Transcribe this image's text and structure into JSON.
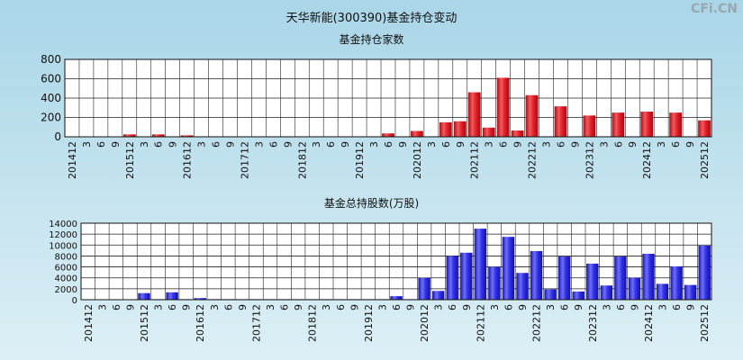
{
  "page": {
    "title": "天华新能(300390)基金持仓变动",
    "watermark": "CFi.CN"
  },
  "chart_data": [
    {
      "type": "bar",
      "title": "基金持仓家数",
      "ylim": [
        0,
        800
      ],
      "yticks": [
        0,
        200,
        400,
        600,
        800
      ],
      "grid": true,
      "color": "#e8212a",
      "categories": [
        "201412",
        "3",
        "6",
        "9",
        "201512",
        "3",
        "6",
        "9",
        "201612",
        "3",
        "6",
        "9",
        "201712",
        "3",
        "6",
        "9",
        "201812",
        "3",
        "6",
        "9",
        "201912",
        "3",
        "6",
        "9",
        "202012",
        "3",
        "6",
        "9",
        "202112",
        "3",
        "6",
        "9",
        "202212",
        "3",
        "6",
        "9",
        "202312",
        "3",
        "6",
        "9",
        "202412",
        "3",
        "6",
        "9",
        "202512"
      ],
      "values": [
        2,
        2,
        2,
        2,
        25,
        5,
        25,
        5,
        15,
        5,
        5,
        5,
        5,
        5,
        5,
        5,
        5,
        5,
        5,
        5,
        5,
        5,
        35,
        5,
        60,
        5,
        150,
        160,
        460,
        95,
        610,
        65,
        430,
        5,
        315,
        5,
        220,
        5,
        250,
        5,
        260,
        5,
        250,
        5,
        170
      ]
    },
    {
      "type": "bar",
      "title": "基金总持股数(万股)",
      "ylim": [
        0,
        14000
      ],
      "yticks": [
        0,
        2000,
        4000,
        6000,
        8000,
        10000,
        12000,
        14000
      ],
      "grid": true,
      "color": "#2b2bf0",
      "categories": [
        "201412",
        "3",
        "6",
        "9",
        "201512",
        "3",
        "6",
        "9",
        "201612",
        "3",
        "6",
        "9",
        "201712",
        "3",
        "6",
        "9",
        "201812",
        "3",
        "6",
        "9",
        "201912",
        "3",
        "6",
        "9",
        "202012",
        "3",
        "6",
        "9",
        "202112",
        "3",
        "6",
        "9",
        "202212",
        "3",
        "6",
        "9",
        "202312",
        "3",
        "6",
        "9",
        "202412",
        "3",
        "6",
        "9",
        "202512"
      ],
      "values": [
        50,
        50,
        50,
        50,
        1200,
        100,
        1350,
        100,
        300,
        100,
        100,
        100,
        100,
        100,
        100,
        100,
        100,
        100,
        100,
        100,
        100,
        100,
        650,
        100,
        4000,
        1600,
        8000,
        8600,
        13000,
        6000,
        11500,
        4900,
        8900,
        1900,
        7900,
        1500,
        6600,
        2600,
        7900,
        4000,
        8400,
        2900,
        6100,
        2700,
        9900
      ]
    }
  ]
}
